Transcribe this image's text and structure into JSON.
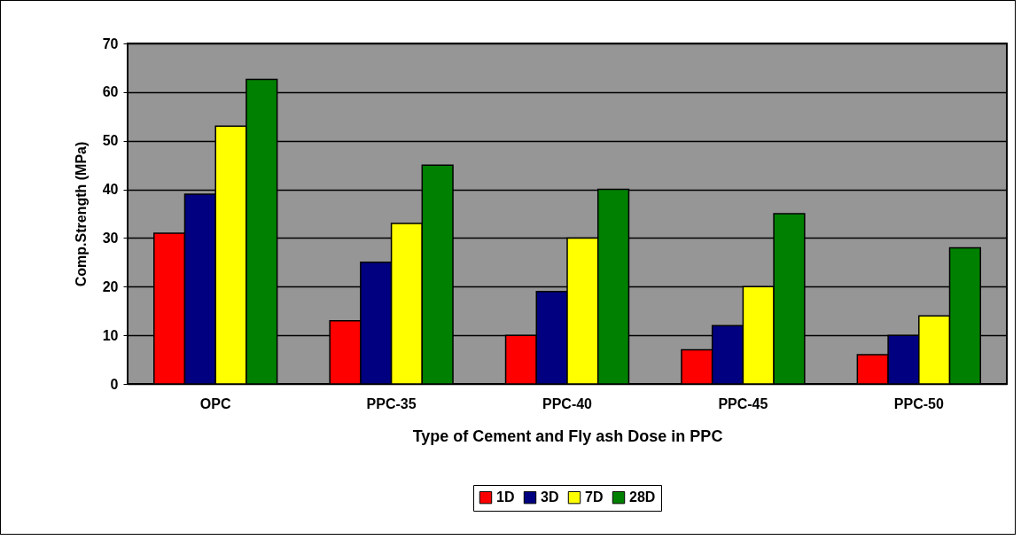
{
  "chart_data": {
    "type": "bar",
    "xlabel": "Type of Cement and Fly ash Dose in PPC",
    "ylabel": "Comp.Strength (MPa)",
    "categories": [
      "OPC",
      "PPC-35",
      "PPC-40",
      "PPC-45",
      "PPC-50"
    ],
    "series": [
      {
        "name": "1D",
        "color": "#ff0000",
        "values": [
          31,
          13,
          10,
          7,
          6
        ]
      },
      {
        "name": "3D",
        "color": "#000080",
        "values": [
          39,
          25,
          19,
          12,
          10
        ]
      },
      {
        "name": "7D",
        "color": "#ffff00",
        "values": [
          53,
          33,
          30,
          20,
          14
        ]
      },
      {
        "name": "28D",
        "color": "#008000",
        "values": [
          62.6,
          45,
          40,
          35,
          28
        ]
      }
    ],
    "ylim": [
      0,
      70
    ],
    "yticks": [
      0,
      10,
      20,
      30,
      40,
      50,
      60,
      70
    ],
    "grid": "y",
    "legend": "bottom"
  }
}
